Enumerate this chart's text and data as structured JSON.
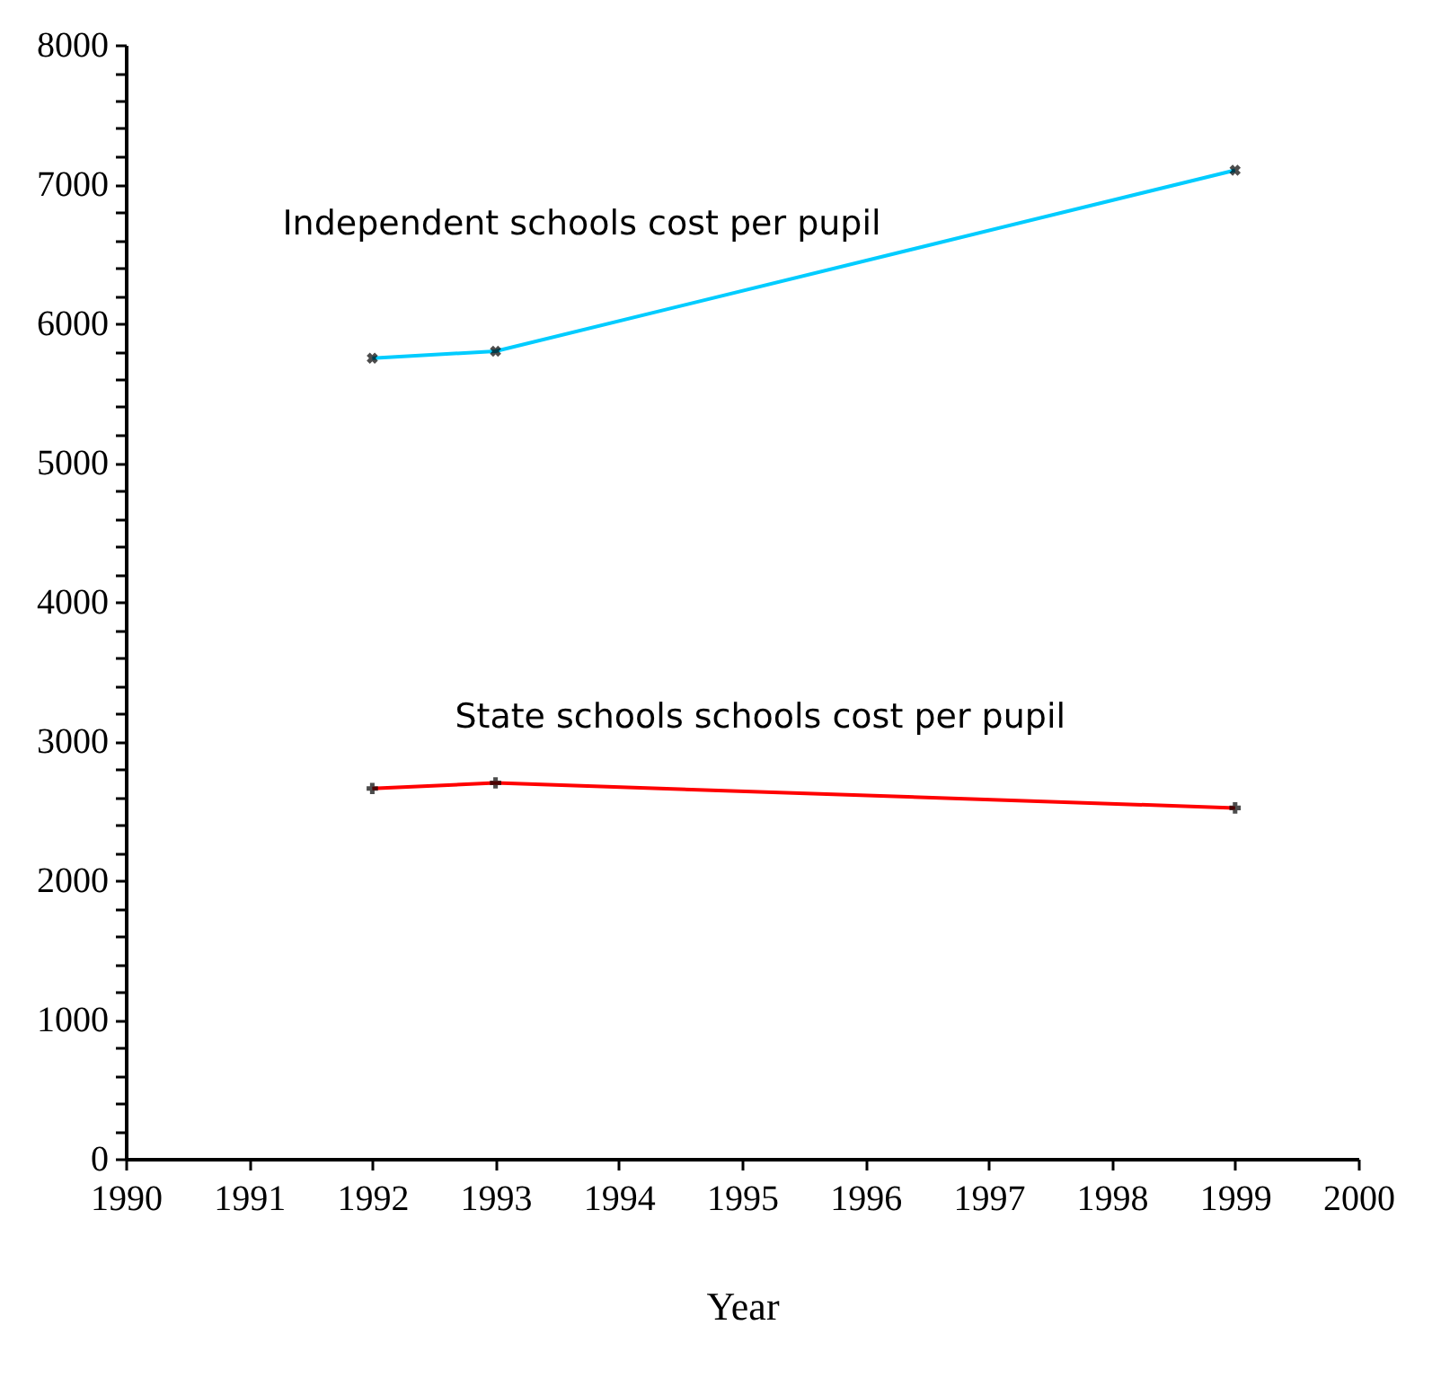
{
  "chart_data": {
    "type": "line",
    "xlabel": "Year",
    "x": [
      1992,
      1993,
      1999
    ],
    "series": [
      {
        "name": "Independent schools cost per pupil",
        "color": "#00ccff",
        "values": [
          5750,
          5800,
          7100
        ]
      },
      {
        "name": "State schools schools cost per pupil",
        "color": "#ff0000",
        "values": [
          2660,
          2700,
          2520
        ]
      }
    ],
    "xlim": [
      1990,
      2000
    ],
    "xticks": [
      1990,
      1991,
      1992,
      1993,
      1994,
      1995,
      1996,
      1997,
      1998,
      1999,
      2000
    ],
    "ylim": [
      0,
      8000
    ],
    "yticks": [
      0,
      {
        "value": 200,
        "label": null
      },
      {
        "value": 400,
        "label": null
      },
      {
        "value": 600,
        "label": null
      },
      {
        "value": 800,
        "label": null
      },
      1000,
      {
        "value": 1200,
        "label": null
      },
      {
        "value": 1400,
        "label": null
      },
      {
        "value": 1600,
        "label": null
      },
      {
        "value": 1800,
        "label": null
      },
      2000,
      {
        "value": 2200,
        "label": null
      },
      {
        "value": 2400,
        "label": null
      },
      {
        "value": 2600,
        "label": null
      },
      {
        "value": 2800,
        "label": null
      },
      3000,
      {
        "value": 3200,
        "label": null
      },
      {
        "value": 3400,
        "label": null
      },
      {
        "value": 3600,
        "label": null
      },
      {
        "value": 3800,
        "label": null
      },
      4000,
      {
        "value": 4200,
        "label": null
      },
      {
        "value": 4400,
        "label": null
      },
      {
        "value": 4600,
        "label": null
      },
      {
        "value": 4800,
        "label": null
      },
      5000,
      {
        "value": 5200,
        "label": null
      },
      {
        "value": 5400,
        "label": null
      },
      {
        "value": 5600,
        "label": null
      },
      {
        "value": 5800,
        "label": null
      },
      6000,
      {
        "value": 6200,
        "label": null
      },
      {
        "value": 6400,
        "label": null
      },
      {
        "value": 6600,
        "label": null
      },
      {
        "value": 6800,
        "label": null
      },
      7000,
      {
        "value": 7200,
        "label": null
      },
      {
        "value": 7400,
        "label": null
      },
      {
        "value": 7600,
        "label": null
      },
      {
        "value": 7800,
        "label": null
      },
      8000
    ],
    "grid": false,
    "marker": "cross",
    "line_style": "solid"
  }
}
